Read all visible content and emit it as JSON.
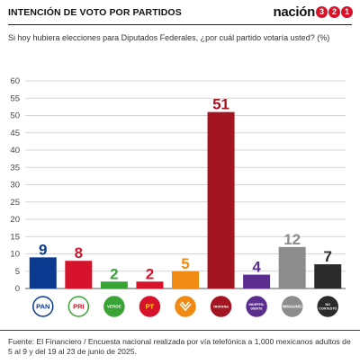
{
  "header": {
    "title": "INTENCIÓN DE VOTO POR PARTIDOS",
    "brand_word": "nación",
    "brand_digits": [
      "3",
      "2",
      "1"
    ]
  },
  "subtitle": "Si hoy hubiera elecciones para Diputados Federales, ¿por cuál partido votaría usted? (%)",
  "source": "Fuente: El Financiero / Encuesta nacional realizada por vía telefónica a 1,000 mexicanos adultos de 5 al 9 y del 19 al 23 de junio de 2025.",
  "colors": {
    "accent": "#d7132b"
  },
  "chart_data": {
    "type": "bar",
    "categories": [
      "PAN",
      "PRI",
      "VERDE",
      "PT",
      "MC",
      "morena",
      "INDEPENDIENTE",
      "NINGUNO",
      "NO CONTESTÓ"
    ],
    "values": [
      9,
      8,
      2,
      2,
      5,
      51,
      4,
      12,
      7
    ],
    "colors": [
      "#0b3b91",
      "#d7132b",
      "#3aa335",
      "#d7132b",
      "#f08a15",
      "#a31520",
      "#5b2d8e",
      "#8c8c8c",
      "#2b2b2b"
    ],
    "ylim": [
      0,
      60
    ],
    "yticks": [
      0,
      5,
      10,
      15,
      20,
      25,
      30,
      35,
      40,
      45,
      50,
      55,
      60
    ],
    "grid": true,
    "logos": [
      {
        "text": "PAN",
        "bg": "#ffffff",
        "fg": "#0b3b91",
        "ring": "#0b3b91"
      },
      {
        "text": "PRI",
        "bg": "#ffffff",
        "fg": "#d7132b",
        "ring": "#3aa335"
      },
      {
        "text": "VERDE",
        "bg": "#3aa335",
        "fg": "#ffffff",
        "ring": "#3aa335"
      },
      {
        "text": "PT",
        "bg": "#d7132b",
        "fg": "#ffe000",
        "ring": "#d7132b"
      },
      {
        "text": "",
        "bg": "#f08a15",
        "fg": "#ffffff",
        "ring": "#f08a15"
      },
      {
        "text": "morena",
        "bg": "#a31520",
        "fg": "#ffffff",
        "ring": "#a31520"
      },
      {
        "text": "INDEPEN-\nDIENTE",
        "bg": "#5b2d8e",
        "fg": "#ffffff",
        "ring": "#5b2d8e"
      },
      {
        "text": "NINGUNO",
        "bg": "#8c8c8c",
        "fg": "#ffffff",
        "ring": "#8c8c8c"
      },
      {
        "text": "NO\nCONTESTÓ",
        "bg": "#2b2b2b",
        "fg": "#ffffff",
        "ring": "#2b2b2b"
      }
    ]
  }
}
